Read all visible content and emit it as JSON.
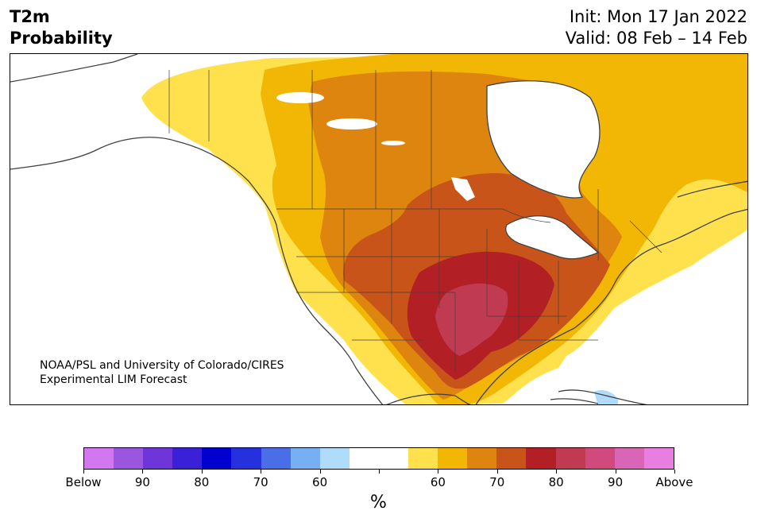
{
  "header": {
    "title_line1": "T2m",
    "title_line2": "Probability",
    "init_line": "Init: Mon 17 Jan 2022",
    "valid_line": "Valid: 08 Feb – 14 Feb"
  },
  "credit": {
    "line1": "NOAA/PSL and University of Colorado/CIRES",
    "line2": "Experimental LIM Forecast"
  },
  "colorbar": {
    "colors": [
      "#d377f0",
      "#9b56e0",
      "#6e36d8",
      "#3a20d6",
      "#0000cf",
      "#2431dc",
      "#4a6de8",
      "#76b0f2",
      "#aedcfa",
      "#ffffff",
      "#ffffff",
      "#ffe14d",
      "#f2b705",
      "#de850f",
      "#c8541a",
      "#b21f24",
      "#c03a52",
      "#d04a7e",
      "#d865b6",
      "#e87ee0"
    ],
    "labels": [
      "Below",
      "90",
      "80",
      "70",
      "60",
      "",
      "60",
      "70",
      "80",
      "90",
      "Above"
    ],
    "unit": "%"
  },
  "legend_palette": {
    "near_normal": "#ffffff",
    "above_60": "#ffe14d",
    "above_65": "#f2b705",
    "above_70": "#de850f",
    "above_75": "#c8541a",
    "above_80": "#b21f24",
    "above_85": "#c03a52",
    "below_60": "#aedcfa"
  }
}
